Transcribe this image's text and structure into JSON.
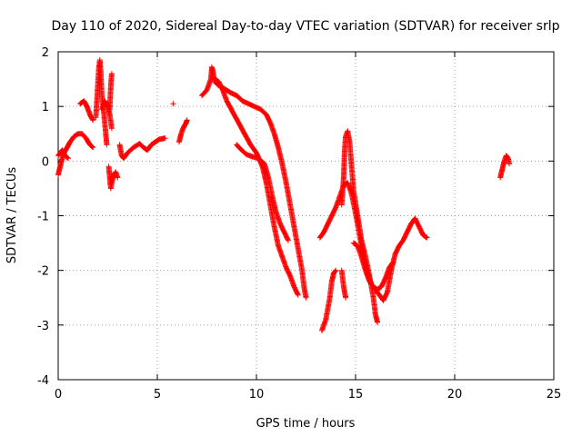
{
  "chart_data": {
    "type": "scatter",
    "title": "Day 110 of 2020, Sidereal Day-to-day VTEC variation (SDTVAR) for receiver srlp",
    "xlabel": "GPS time / hours",
    "ylabel": "SDTVAR / TECUs",
    "xlim": [
      0,
      25
    ],
    "ylim": [
      -4,
      2
    ],
    "xticks": [
      0,
      5,
      10,
      15,
      20,
      25
    ],
    "yticks": [
      -4,
      -3,
      -2,
      -1,
      0,
      1,
      2
    ],
    "grid": true,
    "marker": "+",
    "color": "#ff0000",
    "tracks": [
      [
        [
          0.0,
          -0.25
        ],
        [
          0.1,
          -0.1
        ],
        [
          0.2,
          0.05
        ],
        [
          0.3,
          0.15
        ],
        [
          0.45,
          0.25
        ],
        [
          0.6,
          0.35
        ],
        [
          0.8,
          0.45
        ],
        [
          1.0,
          0.5
        ],
        [
          1.2,
          0.5
        ],
        [
          1.4,
          0.42
        ],
        [
          1.6,
          0.3
        ],
        [
          1.75,
          0.25
        ]
      ],
      [
        [
          0.0,
          0.1
        ],
        [
          0.1,
          0.15
        ],
        [
          0.2,
          0.2
        ],
        [
          0.35,
          0.1
        ],
        [
          0.5,
          0.05
        ]
      ],
      [
        [
          1.1,
          1.05
        ],
        [
          1.3,
          1.1
        ],
        [
          1.45,
          1.0
        ],
        [
          1.6,
          0.85
        ],
        [
          1.75,
          0.75
        ]
      ],
      [
        [
          1.9,
          0.8
        ],
        [
          1.95,
          1.1
        ],
        [
          2.0,
          1.4
        ],
        [
          2.05,
          1.7
        ],
        [
          2.1,
          1.85
        ],
        [
          2.15,
          1.6
        ],
        [
          2.2,
          1.2
        ],
        [
          2.3,
          0.9
        ],
        [
          2.4,
          0.5
        ],
        [
          2.45,
          0.3
        ]
      ],
      [
        [
          2.2,
          0.95
        ],
        [
          2.35,
          1.1
        ],
        [
          2.5,
          1.0
        ],
        [
          2.6,
          0.85
        ],
        [
          2.7,
          0.6
        ]
      ],
      [
        [
          2.55,
          -0.1
        ],
        [
          2.6,
          -0.3
        ],
        [
          2.65,
          -0.5
        ],
        [
          2.7,
          -0.4
        ],
        [
          2.8,
          -0.25
        ],
        [
          2.9,
          -0.2
        ],
        [
          3.0,
          -0.3
        ]
      ],
      [
        [
          2.6,
          0.95
        ],
        [
          2.65,
          1.35
        ],
        [
          2.7,
          1.6
        ]
      ],
      [
        [
          3.1,
          0.3
        ],
        [
          3.2,
          0.1
        ],
        [
          3.3,
          0.05
        ],
        [
          3.5,
          0.15
        ],
        [
          3.8,
          0.25
        ],
        [
          4.1,
          0.32
        ],
        [
          4.3,
          0.25
        ],
        [
          4.5,
          0.2
        ],
        [
          4.7,
          0.3
        ],
        [
          4.9,
          0.35
        ],
        [
          5.1,
          0.4
        ],
        [
          5.4,
          0.42
        ]
      ],
      [
        [
          6.1,
          0.35
        ],
        [
          6.2,
          0.5
        ],
        [
          6.3,
          0.6
        ],
        [
          6.45,
          0.7
        ],
        [
          6.5,
          0.75
        ]
      ],
      [
        [
          5.8,
          1.05
        ]
      ],
      [
        [
          7.25,
          1.2
        ],
        [
          7.5,
          1.3
        ],
        [
          7.7,
          1.5
        ],
        [
          7.75,
          1.72
        ],
        [
          7.8,
          1.65
        ],
        [
          7.9,
          1.45
        ],
        [
          8.1,
          1.38
        ],
        [
          8.4,
          1.32
        ],
        [
          8.7,
          1.25
        ],
        [
          9.0,
          1.2
        ],
        [
          9.3,
          1.1
        ],
        [
          9.6,
          1.05
        ],
        [
          9.9,
          1.0
        ],
        [
          10.2,
          0.95
        ],
        [
          10.5,
          0.85
        ],
        [
          10.7,
          0.7
        ],
        [
          10.9,
          0.5
        ],
        [
          11.1,
          0.25
        ],
        [
          11.3,
          -0.05
        ],
        [
          11.5,
          -0.4
        ],
        [
          11.7,
          -0.8
        ],
        [
          11.9,
          -1.2
        ],
        [
          12.1,
          -1.6
        ],
        [
          12.3,
          -2.0
        ],
        [
          12.4,
          -2.3
        ],
        [
          12.5,
          -2.5
        ]
      ],
      [
        [
          7.9,
          1.5
        ],
        [
          8.1,
          1.45
        ],
        [
          8.3,
          1.3
        ],
        [
          8.5,
          1.1
        ],
        [
          8.8,
          0.9
        ],
        [
          9.1,
          0.7
        ],
        [
          9.4,
          0.5
        ],
        [
          9.7,
          0.3
        ],
        [
          10.0,
          0.15
        ],
        [
          10.3,
          -0.1
        ],
        [
          10.5,
          -0.4
        ],
        [
          10.7,
          -0.8
        ],
        [
          10.9,
          -1.2
        ],
        [
          11.1,
          -1.55
        ],
        [
          11.3,
          -1.75
        ],
        [
          11.5,
          -1.95
        ],
        [
          11.7,
          -2.1
        ],
        [
          11.9,
          -2.3
        ],
        [
          12.1,
          -2.45
        ]
      ],
      [
        [
          9.0,
          0.3
        ],
        [
          9.2,
          0.22
        ],
        [
          9.5,
          0.12
        ],
        [
          9.8,
          0.08
        ],
        [
          10.1,
          0.05
        ],
        [
          10.4,
          -0.05
        ],
        [
          10.6,
          -0.3
        ],
        [
          10.8,
          -0.65
        ],
        [
          11.0,
          -0.95
        ],
        [
          11.2,
          -1.15
        ],
        [
          11.4,
          -1.3
        ],
        [
          11.6,
          -1.45
        ]
      ],
      [
        [
          13.2,
          -1.4
        ],
        [
          13.4,
          -1.3
        ],
        [
          13.6,
          -1.15
        ],
        [
          13.8,
          -1.0
        ],
        [
          14.0,
          -0.85
        ],
        [
          14.2,
          -0.65
        ],
        [
          14.4,
          -0.45
        ],
        [
          14.6,
          -0.4
        ],
        [
          14.8,
          -0.6
        ],
        [
          15.0,
          -0.95
        ],
        [
          15.2,
          -1.35
        ],
        [
          15.4,
          -1.75
        ],
        [
          15.6,
          -2.05
        ],
        [
          15.8,
          -2.25
        ],
        [
          16.0,
          -2.35
        ],
        [
          16.2,
          -2.45
        ],
        [
          16.4,
          -2.55
        ],
        [
          16.6,
          -2.4
        ],
        [
          16.8,
          -2.0
        ],
        [
          17.0,
          -1.7
        ],
        [
          17.2,
          -1.55
        ],
        [
          17.4,
          -1.45
        ],
        [
          17.6,
          -1.3
        ],
        [
          17.8,
          -1.15
        ],
        [
          18.0,
          -1.05
        ],
        [
          18.2,
          -1.2
        ],
        [
          18.4,
          -1.35
        ],
        [
          18.6,
          -1.4
        ]
      ],
      [
        [
          13.3,
          -3.1
        ],
        [
          13.5,
          -2.9
        ],
        [
          13.7,
          -2.5
        ],
        [
          13.8,
          -2.2
        ],
        [
          13.9,
          -2.05
        ],
        [
          14.0,
          -2.0
        ]
      ],
      [
        [
          14.3,
          -0.8
        ],
        [
          14.4,
          -0.3
        ],
        [
          14.45,
          0.2
        ],
        [
          14.5,
          0.45
        ],
        [
          14.6,
          0.55
        ],
        [
          14.7,
          0.35
        ],
        [
          14.8,
          -0.1
        ],
        [
          14.9,
          -0.55
        ],
        [
          15.1,
          -1.0
        ],
        [
          15.3,
          -1.45
        ],
        [
          15.5,
          -1.75
        ],
        [
          15.7,
          -2.1
        ],
        [
          15.9,
          -2.5
        ],
        [
          16.0,
          -2.8
        ],
        [
          16.1,
          -2.95
        ]
      ],
      [
        [
          14.3,
          -2.0
        ],
        [
          14.4,
          -2.3
        ],
        [
          14.5,
          -2.5
        ]
      ],
      [
        [
          14.9,
          -1.5
        ],
        [
          15.1,
          -1.55
        ],
        [
          15.3,
          -1.75
        ],
        [
          15.5,
          -2.0
        ],
        [
          15.7,
          -2.2
        ],
        [
          15.9,
          -2.3
        ],
        [
          16.1,
          -2.35
        ],
        [
          16.3,
          -2.3
        ],
        [
          16.5,
          -2.15
        ],
        [
          16.7,
          -1.95
        ],
        [
          16.9,
          -1.85
        ]
      ],
      [
        [
          22.3,
          -0.3
        ],
        [
          22.4,
          -0.15
        ],
        [
          22.5,
          0.0
        ],
        [
          22.6,
          0.1
        ],
        [
          22.7,
          0.05
        ],
        [
          22.75,
          -0.05
        ]
      ]
    ]
  }
}
